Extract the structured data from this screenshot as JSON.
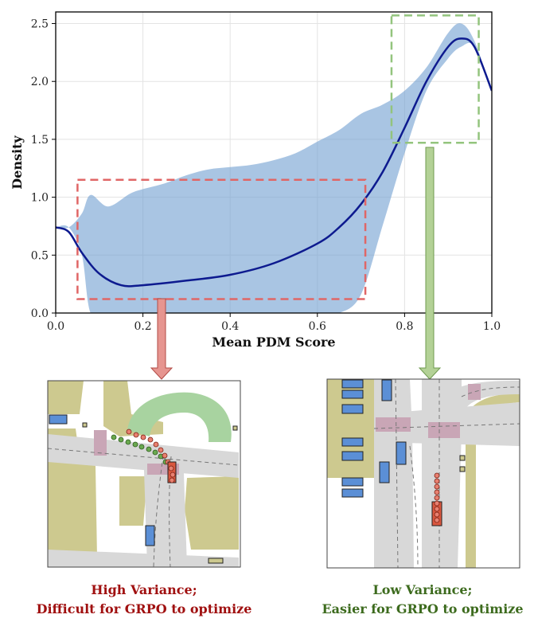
{
  "chart_data": {
    "type": "area",
    "xlabel": "Mean PDM Score",
    "ylabel": "Density",
    "xlim": [
      0.0,
      1.0
    ],
    "ylim": [
      0.0,
      2.6
    ],
    "xticks": [
      "0.0",
      "0.2",
      "0.4",
      "0.6",
      "0.8",
      "1.0"
    ],
    "yticks": [
      "0.0",
      "0.5",
      "1.0",
      "1.5",
      "2.0",
      "2.5"
    ],
    "grid": true,
    "series": [
      {
        "kind": "mean-line",
        "color": "#0d1a8f",
        "x": [
          0.0,
          0.03,
          0.06,
          0.1,
          0.15,
          0.2,
          0.3,
          0.4,
          0.5,
          0.6,
          0.65,
          0.7,
          0.75,
          0.8,
          0.85,
          0.9,
          0.93,
          0.96,
          1.0
        ],
        "y": [
          0.74,
          0.7,
          0.52,
          0.34,
          0.24,
          0.24,
          0.28,
          0.33,
          0.43,
          0.6,
          0.74,
          0.94,
          1.22,
          1.6,
          2.0,
          2.3,
          2.37,
          2.3,
          1.92
        ]
      },
      {
        "kind": "band",
        "color": "#6f9ed0",
        "x": [
          0.0,
          0.03,
          0.06,
          0.08,
          0.12,
          0.17,
          0.2,
          0.25,
          0.3,
          0.35,
          0.4,
          0.45,
          0.5,
          0.55,
          0.6,
          0.65,
          0.7,
          0.75,
          0.8,
          0.85,
          0.9,
          0.93,
          0.96,
          1.0
        ],
        "upper": [
          0.74,
          0.74,
          0.86,
          1.02,
          0.92,
          1.03,
          1.07,
          1.12,
          1.19,
          1.24,
          1.26,
          1.28,
          1.32,
          1.38,
          1.48,
          1.58,
          1.72,
          1.8,
          1.92,
          2.12,
          2.42,
          2.5,
          2.35,
          1.92
        ],
        "lower": [
          0.74,
          0.74,
          0.5,
          0.0,
          0.0,
          0.0,
          0.0,
          0.0,
          0.0,
          0.0,
          0.0,
          0.0,
          0.0,
          0.0,
          0.0,
          0.0,
          0.16,
          0.76,
          1.38,
          1.92,
          2.2,
          2.3,
          2.3,
          1.92
        ]
      }
    ],
    "highlights": [
      {
        "label": "high-variance-region",
        "color": "#e06666",
        "x": [
          0.05,
          0.71
        ],
        "y": [
          0.12,
          1.15
        ]
      },
      {
        "label": "low-variance-region",
        "color": "#93c47d",
        "x": [
          0.77,
          0.97
        ],
        "y": [
          1.47,
          2.57
        ]
      }
    ]
  },
  "captions": {
    "high_variance": {
      "line1": "High Variance;",
      "line2": "Difficult for GRPO to optimize",
      "color": "#a01010"
    },
    "low_variance": {
      "line1": "Low Variance;",
      "line2": "Easier for GRPO to optimize",
      "color": "#3d6b1e"
    }
  },
  "colors": {
    "road": "#d8d8d8",
    "sidewalk": "#cdc98f",
    "crosswalk": "#c9a6b6",
    "park": "#a8d3a0",
    "vehicle": "#5b8fd6",
    "ego": "#d9573f",
    "trajectory_good": "#6aa84f"
  },
  "icons": {
    "arrow_high": "down-arrow-icon",
    "arrow_low": "down-arrow-icon"
  }
}
